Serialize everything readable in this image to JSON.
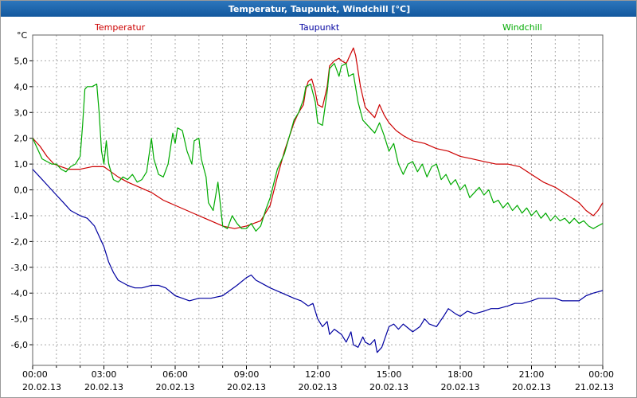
{
  "window": {
    "title": "Temperatur, Taupunkt, Windchill [°C]"
  },
  "axes": {
    "y_unit_label": "°C"
  },
  "chart_data": {
    "type": "line",
    "title": "Temperatur, Taupunkt, Windchill [°C]",
    "ylabel": "°C",
    "xlabel": "",
    "x_unit": "hours",
    "xlim": [
      0,
      24
    ],
    "ylim": [
      -6.8,
      6.0
    ],
    "grid": true,
    "legend_position": "top",
    "y_ticks": [
      5,
      4,
      3,
      2,
      1,
      0,
      -1,
      -2,
      -3,
      -4,
      -5,
      -6
    ],
    "y_tick_labels": [
      "5,0",
      "4,0",
      "3,0",
      "2,0",
      "1,0",
      "0,0",
      "-1,0",
      "-2,0",
      "-3,0",
      "-4,0",
      "-5,0",
      "-6,0"
    ],
    "x_ticks": [
      0,
      3,
      6,
      9,
      12,
      15,
      18,
      21,
      24
    ],
    "x_tick_labels": [
      "00:00",
      "03:00",
      "06:00",
      "09:00",
      "12:00",
      "15:00",
      "18:00",
      "21:00",
      "00:00"
    ],
    "x_tick_dates": [
      "20.02.13",
      "20.02.13",
      "20.02.13",
      "20.02.13",
      "20.02.13",
      "20.02.13",
      "20.02.13",
      "20.02.13",
      "21.02.13"
    ],
    "grid_color": "#a8a8a8",
    "border_color": "#606060",
    "series": [
      {
        "name": "Temperatur",
        "color": "#cc0000",
        "points": [
          [
            0,
            2.0
          ],
          [
            0.3,
            1.7
          ],
          [
            0.6,
            1.3
          ],
          [
            0.9,
            1.0
          ],
          [
            1.2,
            0.9
          ],
          [
            1.5,
            0.8
          ],
          [
            2,
            0.8
          ],
          [
            2.5,
            0.9
          ],
          [
            3,
            0.9
          ],
          [
            3.3,
            0.7
          ],
          [
            3.6,
            0.5
          ],
          [
            4,
            0.3
          ],
          [
            4.5,
            0.1
          ],
          [
            5,
            -0.1
          ],
          [
            5.5,
            -0.4
          ],
          [
            6,
            -0.6
          ],
          [
            6.5,
            -0.8
          ],
          [
            7,
            -1.0
          ],
          [
            7.5,
            -1.2
          ],
          [
            8,
            -1.4
          ],
          [
            8.5,
            -1.5
          ],
          [
            9,
            -1.4
          ],
          [
            9.3,
            -1.3
          ],
          [
            9.6,
            -1.2
          ],
          [
            10,
            -0.6
          ],
          [
            10.3,
            0.5
          ],
          [
            10.6,
            1.5
          ],
          [
            11,
            2.6
          ],
          [
            11.2,
            3.0
          ],
          [
            11.4,
            3.3
          ],
          [
            11.5,
            3.9
          ],
          [
            11.6,
            4.2
          ],
          [
            11.75,
            4.3
          ],
          [
            11.9,
            3.8
          ],
          [
            12,
            3.3
          ],
          [
            12.2,
            3.2
          ],
          [
            12.4,
            4.0
          ],
          [
            12.5,
            4.8
          ],
          [
            12.7,
            5.0
          ],
          [
            12.9,
            5.1
          ],
          [
            13,
            5.0
          ],
          [
            13.2,
            4.9
          ],
          [
            13.4,
            5.3
          ],
          [
            13.5,
            5.5
          ],
          [
            13.6,
            5.2
          ],
          [
            13.8,
            4.0
          ],
          [
            14,
            3.2
          ],
          [
            14.2,
            3.0
          ],
          [
            14.4,
            2.8
          ],
          [
            14.6,
            3.3
          ],
          [
            14.8,
            2.9
          ],
          [
            15,
            2.6
          ],
          [
            15.3,
            2.3
          ],
          [
            15.6,
            2.1
          ],
          [
            16,
            1.9
          ],
          [
            16.5,
            1.8
          ],
          [
            17,
            1.6
          ],
          [
            17.5,
            1.5
          ],
          [
            18,
            1.3
          ],
          [
            18.5,
            1.2
          ],
          [
            19,
            1.1
          ],
          [
            19.5,
            1.0
          ],
          [
            20,
            1.0
          ],
          [
            20.5,
            0.9
          ],
          [
            21,
            0.6
          ],
          [
            21.5,
            0.3
          ],
          [
            22,
            0.1
          ],
          [
            22.5,
            -0.2
          ],
          [
            23,
            -0.5
          ],
          [
            23.3,
            -0.8
          ],
          [
            23.6,
            -1.0
          ],
          [
            23.8,
            -0.8
          ],
          [
            24,
            -0.5
          ]
        ]
      },
      {
        "name": "Taupunkt",
        "color": "#0000a0",
        "points": [
          [
            0,
            0.8
          ],
          [
            0.3,
            0.5
          ],
          [
            0.6,
            0.2
          ],
          [
            1,
            -0.2
          ],
          [
            1.3,
            -0.5
          ],
          [
            1.6,
            -0.8
          ],
          [
            2,
            -1.0
          ],
          [
            2.3,
            -1.1
          ],
          [
            2.6,
            -1.4
          ],
          [
            3,
            -2.2
          ],
          [
            3.2,
            -2.8
          ],
          [
            3.4,
            -3.2
          ],
          [
            3.6,
            -3.5
          ],
          [
            4,
            -3.7
          ],
          [
            4.3,
            -3.8
          ],
          [
            4.6,
            -3.8
          ],
          [
            5,
            -3.7
          ],
          [
            5.3,
            -3.7
          ],
          [
            5.6,
            -3.8
          ],
          [
            6,
            -4.1
          ],
          [
            6.3,
            -4.2
          ],
          [
            6.6,
            -4.3
          ],
          [
            7,
            -4.2
          ],
          [
            7.5,
            -4.2
          ],
          [
            8,
            -4.1
          ],
          [
            8.3,
            -3.9
          ],
          [
            8.6,
            -3.7
          ],
          [
            9,
            -3.4
          ],
          [
            9.2,
            -3.3
          ],
          [
            9.4,
            -3.5
          ],
          [
            9.6,
            -3.6
          ],
          [
            10,
            -3.8
          ],
          [
            10.5,
            -4.0
          ],
          [
            11,
            -4.2
          ],
          [
            11.3,
            -4.3
          ],
          [
            11.6,
            -4.5
          ],
          [
            11.8,
            -4.4
          ],
          [
            12,
            -5.0
          ],
          [
            12.2,
            -5.3
          ],
          [
            12.4,
            -5.1
          ],
          [
            12.5,
            -5.6
          ],
          [
            12.7,
            -5.4
          ],
          [
            13,
            -5.6
          ],
          [
            13.2,
            -5.9
          ],
          [
            13.4,
            -5.5
          ],
          [
            13.5,
            -6.0
          ],
          [
            13.7,
            -6.1
          ],
          [
            13.9,
            -5.7
          ],
          [
            14,
            -5.9
          ],
          [
            14.2,
            -6.0
          ],
          [
            14.4,
            -5.8
          ],
          [
            14.5,
            -6.3
          ],
          [
            14.7,
            -6.1
          ],
          [
            15,
            -5.3
          ],
          [
            15.2,
            -5.2
          ],
          [
            15.4,
            -5.4
          ],
          [
            15.6,
            -5.2
          ],
          [
            16,
            -5.5
          ],
          [
            16.3,
            -5.3
          ],
          [
            16.5,
            -5.0
          ],
          [
            16.7,
            -5.2
          ],
          [
            17,
            -5.3
          ],
          [
            17.3,
            -4.9
          ],
          [
            17.5,
            -4.6
          ],
          [
            17.8,
            -4.8
          ],
          [
            18,
            -4.9
          ],
          [
            18.3,
            -4.7
          ],
          [
            18.6,
            -4.8
          ],
          [
            19,
            -4.7
          ],
          [
            19.3,
            -4.6
          ],
          [
            19.6,
            -4.6
          ],
          [
            20,
            -4.5
          ],
          [
            20.3,
            -4.4
          ],
          [
            20.6,
            -4.4
          ],
          [
            21,
            -4.3
          ],
          [
            21.3,
            -4.2
          ],
          [
            21.6,
            -4.2
          ],
          [
            22,
            -4.2
          ],
          [
            22.3,
            -4.3
          ],
          [
            22.6,
            -4.3
          ],
          [
            23,
            -4.3
          ],
          [
            23.3,
            -4.1
          ],
          [
            23.6,
            -4.0
          ],
          [
            24,
            -3.9
          ]
        ]
      },
      {
        "name": "Windchill",
        "color": "#00aa00",
        "points": [
          [
            0,
            2.0
          ],
          [
            0.2,
            1.6
          ],
          [
            0.4,
            1.2
          ],
          [
            0.6,
            1.1
          ],
          [
            0.8,
            1.0
          ],
          [
            1,
            1.0
          ],
          [
            1.2,
            0.8
          ],
          [
            1.4,
            0.7
          ],
          [
            1.6,
            0.9
          ],
          [
            1.8,
            1.0
          ],
          [
            2,
            1.3
          ],
          [
            2.1,
            2.5
          ],
          [
            2.2,
            3.9
          ],
          [
            2.3,
            4.0
          ],
          [
            2.5,
            4.0
          ],
          [
            2.7,
            4.1
          ],
          [
            2.8,
            3.0
          ],
          [
            2.9,
            1.5
          ],
          [
            3,
            1.0
          ],
          [
            3.1,
            1.9
          ],
          [
            3.2,
            1.0
          ],
          [
            3.4,
            0.4
          ],
          [
            3.6,
            0.3
          ],
          [
            3.8,
            0.5
          ],
          [
            4,
            0.4
          ],
          [
            4.2,
            0.6
          ],
          [
            4.4,
            0.3
          ],
          [
            4.6,
            0.4
          ],
          [
            4.8,
            0.7
          ],
          [
            5,
            2.0
          ],
          [
            5.1,
            1.2
          ],
          [
            5.3,
            0.6
          ],
          [
            5.5,
            0.5
          ],
          [
            5.7,
            1.0
          ],
          [
            5.9,
            2.2
          ],
          [
            6,
            1.8
          ],
          [
            6.1,
            2.4
          ],
          [
            6.3,
            2.3
          ],
          [
            6.5,
            1.5
          ],
          [
            6.7,
            1.0
          ],
          [
            6.8,
            1.9
          ],
          [
            7,
            2.0
          ],
          [
            7.1,
            1.2
          ],
          [
            7.3,
            0.5
          ],
          [
            7.4,
            -0.5
          ],
          [
            7.6,
            -0.8
          ],
          [
            7.8,
            0.3
          ],
          [
            8,
            -1.4
          ],
          [
            8.2,
            -1.5
          ],
          [
            8.4,
            -1.0
          ],
          [
            8.6,
            -1.3
          ],
          [
            8.8,
            -1.5
          ],
          [
            9,
            -1.5
          ],
          [
            9.2,
            -1.3
          ],
          [
            9.4,
            -1.6
          ],
          [
            9.6,
            -1.4
          ],
          [
            9.8,
            -0.8
          ],
          [
            10,
            -0.3
          ],
          [
            10.3,
            0.8
          ],
          [
            10.6,
            1.4
          ],
          [
            11,
            2.7
          ],
          [
            11.2,
            3.0
          ],
          [
            11.4,
            3.5
          ],
          [
            11.5,
            4.0
          ],
          [
            11.7,
            4.1
          ],
          [
            11.9,
            3.4
          ],
          [
            12,
            2.6
          ],
          [
            12.2,
            2.5
          ],
          [
            12.4,
            3.8
          ],
          [
            12.5,
            4.7
          ],
          [
            12.7,
            4.9
          ],
          [
            12.9,
            4.4
          ],
          [
            13,
            4.8
          ],
          [
            13.2,
            4.9
          ],
          [
            13.3,
            4.4
          ],
          [
            13.5,
            4.5
          ],
          [
            13.7,
            3.4
          ],
          [
            13.9,
            2.7
          ],
          [
            14,
            2.6
          ],
          [
            14.2,
            2.4
          ],
          [
            14.4,
            2.2
          ],
          [
            14.6,
            2.6
          ],
          [
            14.8,
            2.1
          ],
          [
            15,
            1.5
          ],
          [
            15.2,
            1.8
          ],
          [
            15.4,
            1.0
          ],
          [
            15.6,
            0.6
          ],
          [
            15.8,
            1.0
          ],
          [
            16,
            1.1
          ],
          [
            16.2,
            0.7
          ],
          [
            16.4,
            1.0
          ],
          [
            16.6,
            0.5
          ],
          [
            16.8,
            0.9
          ],
          [
            17,
            1.0
          ],
          [
            17.2,
            0.4
          ],
          [
            17.4,
            0.6
          ],
          [
            17.6,
            0.2
          ],
          [
            17.8,
            0.4
          ],
          [
            18,
            0.0
          ],
          [
            18.2,
            0.2
          ],
          [
            18.4,
            -0.3
          ],
          [
            18.6,
            -0.1
          ],
          [
            18.8,
            0.1
          ],
          [
            19,
            -0.2
          ],
          [
            19.2,
            0.0
          ],
          [
            19.4,
            -0.5
          ],
          [
            19.6,
            -0.4
          ],
          [
            19.8,
            -0.7
          ],
          [
            20,
            -0.5
          ],
          [
            20.2,
            -0.8
          ],
          [
            20.4,
            -0.6
          ],
          [
            20.6,
            -0.9
          ],
          [
            20.8,
            -0.7
          ],
          [
            21,
            -1.0
          ],
          [
            21.2,
            -0.8
          ],
          [
            21.4,
            -1.1
          ],
          [
            21.6,
            -0.9
          ],
          [
            21.8,
            -1.2
          ],
          [
            22,
            -1.0
          ],
          [
            22.2,
            -1.2
          ],
          [
            22.4,
            -1.1
          ],
          [
            22.6,
            -1.3
          ],
          [
            22.8,
            -1.1
          ],
          [
            23,
            -1.3
          ],
          [
            23.2,
            -1.2
          ],
          [
            23.4,
            -1.4
          ],
          [
            23.6,
            -1.5
          ],
          [
            23.8,
            -1.4
          ],
          [
            24,
            -1.3
          ]
        ]
      }
    ]
  }
}
